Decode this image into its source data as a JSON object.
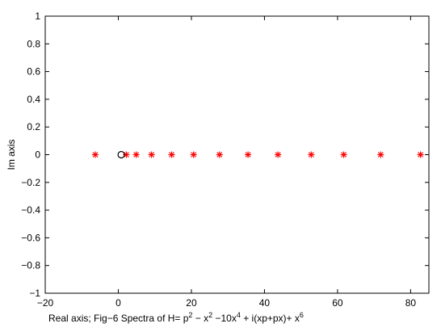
{
  "chart_data": {
    "type": "scatter",
    "xlabel_parts": [
      "Real axis; Fig−6 Spectra of H= p",
      "2",
      " − x",
      "2",
      " −10x",
      "4",
      " + i(xp+px)+ x",
      "6"
    ],
    "ylabel": "Im axis",
    "xlim": [
      -20,
      85
    ],
    "ylim": [
      -1,
      1
    ],
    "x_ticks": [
      -20,
      0,
      20,
      40,
      60,
      80
    ],
    "x_tick_labels": [
      "−20",
      "0",
      "20",
      "40",
      "60",
      "80"
    ],
    "y_ticks": [
      1,
      0.8,
      0.6,
      0.4,
      0.2,
      0,
      -0.2,
      -0.4,
      -0.6,
      -0.8,
      -1
    ],
    "y_tick_labels": [
      "1",
      "0.8",
      "0.6",
      "0.4",
      "0.2",
      "0",
      "−0.2",
      "−0.4",
      "−0.6",
      "−0.8",
      "−1"
    ],
    "grid": false,
    "series": [
      {
        "marker": "asterisk",
        "color": "#ff0000",
        "points": [
          [
            -6.3,
            0
          ],
          [
            2.2,
            0
          ],
          [
            4.9,
            0
          ],
          [
            9.1,
            0
          ],
          [
            14.6,
            0
          ],
          [
            20.6,
            0
          ],
          [
            27.7,
            0
          ],
          [
            35.5,
            0
          ],
          [
            43.7,
            0
          ],
          [
            52.8,
            0
          ],
          [
            61.7,
            0
          ],
          [
            71.8,
            0
          ],
          [
            82.7,
            0
          ]
        ]
      },
      {
        "marker": "circle",
        "color": "#000000",
        "points": [
          [
            0.8,
            0
          ]
        ]
      }
    ]
  }
}
